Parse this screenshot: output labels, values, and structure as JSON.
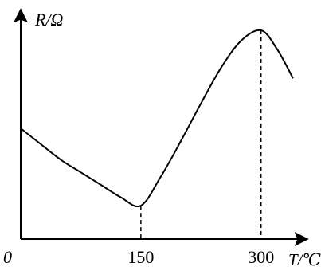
{
  "chart_data": {
    "type": "line",
    "title": "",
    "ylabel": "R/Ω",
    "xlabel": "T/℃",
    "origin_label": "0",
    "x_ticks": [
      150,
      300
    ],
    "xlim": [
      0,
      350
    ],
    "ylim": [
      0,
      100
    ],
    "grid": false,
    "series": [
      {
        "x": [
          0,
          20,
          50,
          75,
          100,
          125,
          150,
          175,
          200,
          225,
          250,
          275,
          300,
          320,
          340
        ],
        "y": [
          53,
          47,
          38,
          32,
          26,
          20,
          16,
          30,
          47,
          65,
          82,
          95,
          100,
          91,
          77
        ]
      }
    ],
    "reference_lines": [
      {
        "x": 150,
        "y": 16
      },
      {
        "x": 300,
        "y": 100
      }
    ]
  }
}
